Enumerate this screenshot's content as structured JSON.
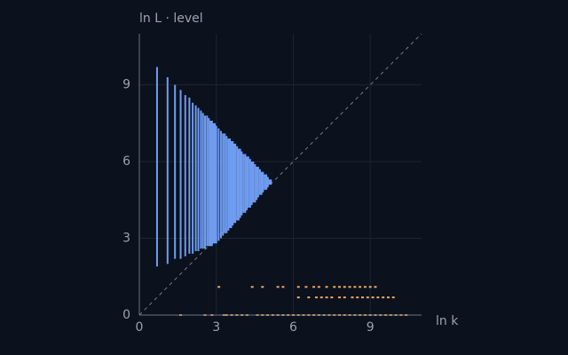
{
  "chart_data": {
    "type": "scatter",
    "x_label": "ln k",
    "y_label": "ln L · level",
    "xlim": [
      0,
      11
    ],
    "ylim": [
      0,
      11
    ],
    "xticks": [
      0,
      3,
      6,
      9
    ],
    "yticks": [
      0,
      3,
      6,
      9
    ],
    "grid": true,
    "diagonal": true,
    "series": [
      {
        "color": "#6f9cf0",
        "x": [
          0.69,
          1.1,
          1.39,
          1.61,
          1.79,
          1.95,
          2.08,
          2.2,
          2.3,
          2.4,
          2.48,
          2.56,
          2.64,
          2.71,
          2.77,
          2.83,
          2.89,
          2.94,
          3.0,
          3.09,
          3.18,
          3.26,
          3.33,
          3.4,
          3.47,
          3.53,
          3.58,
          3.64,
          3.69,
          3.74,
          3.81,
          3.87,
          3.93,
          3.99,
          4.06,
          4.13,
          4.19,
          4.25,
          4.32,
          4.38,
          4.44,
          4.51,
          4.57,
          4.63,
          4.7,
          4.76,
          4.82,
          4.89,
          4.95,
          5.01,
          5.07,
          5.13
        ],
        "low": [
          1.9,
          2.0,
          2.2,
          2.2,
          2.3,
          2.4,
          2.4,
          2.5,
          2.5,
          2.6,
          2.6,
          2.6,
          2.7,
          2.7,
          2.7,
          2.7,
          2.8,
          2.8,
          2.8,
          2.9,
          3.0,
          3.1,
          3.2,
          3.2,
          3.3,
          3.4,
          3.4,
          3.5,
          3.6,
          3.6,
          3.7,
          3.7,
          3.8,
          3.9,
          4.0,
          4.0,
          4.1,
          4.2,
          4.2,
          4.3,
          4.4,
          4.4,
          4.5,
          4.6,
          4.7,
          4.7,
          4.8,
          4.9,
          4.9,
          5.0,
          5.1,
          5.1
        ],
        "high": [
          9.7,
          9.3,
          9.0,
          8.8,
          8.6,
          8.5,
          8.3,
          8.2,
          8.1,
          8.0,
          7.9,
          7.8,
          7.8,
          7.7,
          7.6,
          7.6,
          7.5,
          7.5,
          7.4,
          7.3,
          7.2,
          7.1,
          7.1,
          7.0,
          6.9,
          6.9,
          6.8,
          6.8,
          6.7,
          6.7,
          6.6,
          6.5,
          6.5,
          6.4,
          6.3,
          6.3,
          6.2,
          6.2,
          6.1,
          6.0,
          6.0,
          5.9,
          5.8,
          5.8,
          5.7,
          5.6,
          5.6,
          5.5,
          5.5,
          5.4,
          5.3,
          5.3
        ]
      },
      {
        "color": "#f0a860",
        "x": [
          1.61,
          2.56,
          2.83,
          3.3,
          3.4,
          3.6,
          3.8,
          4.0,
          4.2,
          4.6,
          4.8,
          5.0,
          5.2,
          5.4,
          5.6,
          5.8,
          6.0,
          6.2,
          6.4,
          6.6,
          6.8,
          7.0,
          7.2,
          7.4,
          7.6,
          7.8,
          8.0,
          8.2,
          8.4,
          8.6,
          8.8,
          9.0,
          9.2,
          9.4,
          9.6,
          9.8,
          10.0,
          10.2,
          10.4,
          6.2,
          6.6,
          6.9,
          7.1,
          7.3,
          7.5,
          7.8,
          8.0,
          8.3,
          8.5,
          8.7,
          8.9,
          9.1,
          9.3,
          9.5,
          9.7,
          9.9,
          3.1,
          4.4,
          4.8,
          5.4,
          5.6,
          6.2,
          6.5,
          6.8,
          7.0,
          7.3,
          7.6,
          7.8,
          8.0,
          8.2,
          8.4,
          8.6,
          8.8,
          9.0,
          9.2
        ],
        "y": [
          0,
          0,
          0,
          0,
          0,
          0,
          0,
          0,
          0,
          0,
          0,
          0,
          0,
          0,
          0,
          0,
          0,
          0,
          0,
          0,
          0,
          0,
          0,
          0,
          0,
          0,
          0,
          0,
          0,
          0,
          0,
          0,
          0,
          0,
          0,
          0,
          0,
          0,
          0,
          0.69,
          0.69,
          0.69,
          0.69,
          0.69,
          0.69,
          0.69,
          0.69,
          0.69,
          0.69,
          0.69,
          0.69,
          0.69,
          0.69,
          0.69,
          0.69,
          0.69,
          1.1,
          1.1,
          1.1,
          1.1,
          1.1,
          1.1,
          1.1,
          1.1,
          1.1,
          1.1,
          1.1,
          1.1,
          1.1,
          1.1,
          1.1,
          1.1,
          1.1,
          1.1,
          1.1
        ]
      }
    ]
  }
}
